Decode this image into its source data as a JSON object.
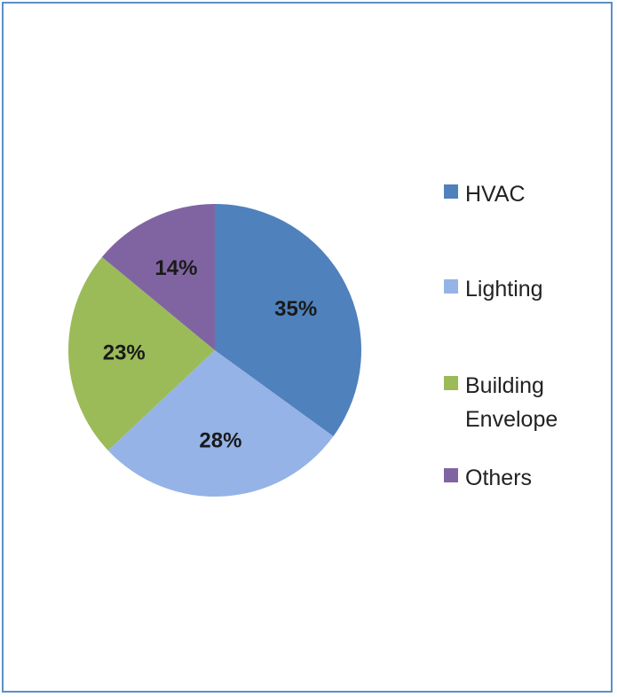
{
  "chart_data": {
    "type": "pie",
    "title": "",
    "start_angle_deg": 0,
    "direction": "clockwise",
    "legend_position": "right",
    "slices": [
      {
        "name": "HVAC",
        "value": 35,
        "label": "35%",
        "color": "#4f81bd"
      },
      {
        "name": "Lighting",
        "value": 28,
        "label": "28%",
        "color": "#95b3e6"
      },
      {
        "name": "Building Envelope",
        "value": 23,
        "label": "23%",
        "color": "#9bbb59"
      },
      {
        "name": "Others",
        "value": 14,
        "label": "14%",
        "color": "#8064a2"
      }
    ],
    "legend": [
      {
        "name": "HVAC",
        "color": "#4f81bd"
      },
      {
        "name": "Lighting",
        "color": "#95b3e6"
      },
      {
        "name": "Building Envelope",
        "color": "#9bbb59"
      },
      {
        "name": "Others",
        "color": "#8064a2"
      }
    ]
  }
}
